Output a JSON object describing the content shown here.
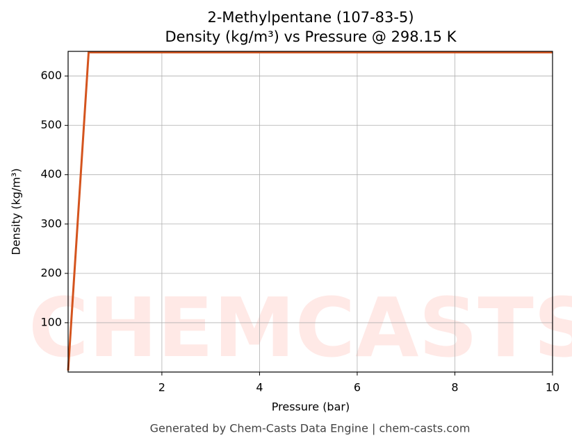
{
  "chart_data": {
    "type": "line",
    "title": "2-Methylpentane (107-83-5)",
    "subtitle": "Density (kg/m³) vs Pressure @ 298.15 K",
    "x_label": "Pressure (bar)",
    "y_label": "Density (kg/m³)",
    "watermark": "CHEMCASTS",
    "footer": "Generated by Chem-Casts Data Engine | chem-casts.com",
    "x": [
      0.08,
      0.5,
      10
    ],
    "series": [
      {
        "name": "Density",
        "color": "#d4541e",
        "values": [
          3,
          648,
          648
        ]
      }
    ],
    "xlim": [
      0.08,
      10
    ],
    "xticks": [
      2,
      4,
      6,
      8,
      10
    ],
    "ylim": [
      0,
      650
    ],
    "yticks": [
      100,
      200,
      300,
      400,
      500,
      600
    ],
    "grid": true
  }
}
